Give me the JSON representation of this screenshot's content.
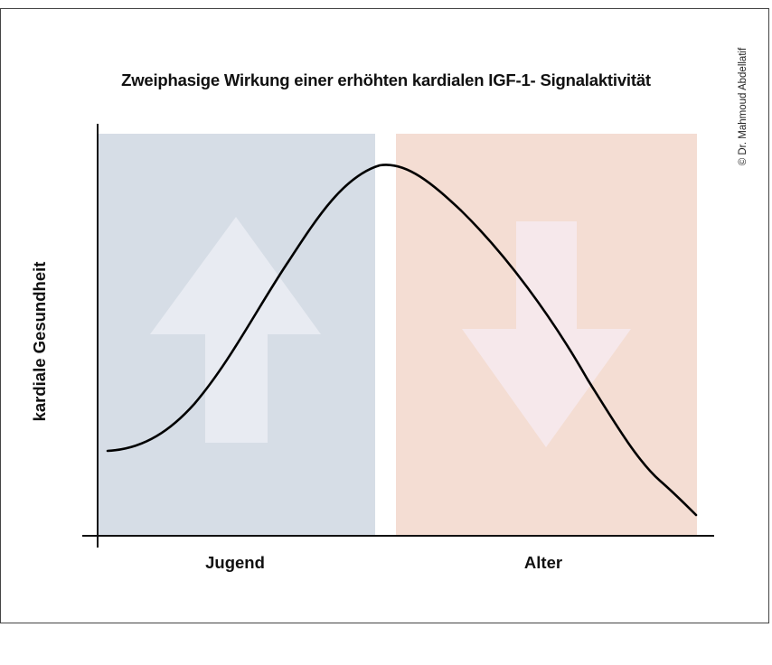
{
  "title": "Zweiphasige Wirkung einer erhöhten kardialen IGF-1- Signalaktivität",
  "copyright": "© Dr. Mahmoud Abdellatif",
  "y_axis_label": "kardiale Gesundheit",
  "phases": [
    {
      "label": "Jugend",
      "arrow": "up-arrow",
      "color": "#d6dde6",
      "arrow_color": "#e8ebf2"
    },
    {
      "label": "Alter",
      "arrow": "down-arrow",
      "color": "#f4ddd3",
      "arrow_color": "#f6e8eb"
    }
  ],
  "colors": {
    "curve": "#000000",
    "axis": "#111111",
    "frame": "#444444"
  }
}
